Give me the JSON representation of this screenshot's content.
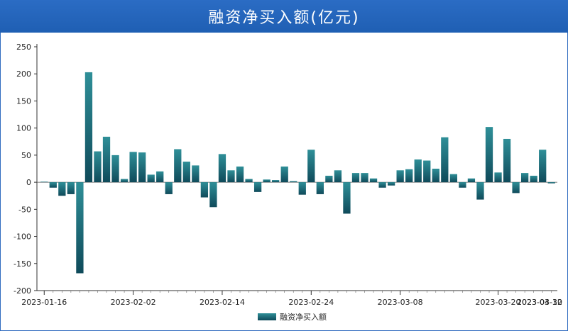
{
  "chart_data": {
    "type": "bar",
    "title": "融资净买入额(亿元)",
    "ylim": [
      -200,
      250
    ],
    "yticks": [
      250,
      200,
      150,
      100,
      50,
      0,
      -50,
      -100,
      -150,
      -200
    ],
    "xtick_labels": [
      "2023-01-16",
      "2023-02-02",
      "2023-02-14",
      "2023-02-24",
      "2023-03-08",
      "2023-03-20",
      "2023-03-30",
      "2023-04-12"
    ],
    "xtick_positions": [
      0,
      10,
      20,
      30,
      40,
      51,
      60,
      70
    ],
    "legend": "融资净买入额",
    "legend_position": "bottom",
    "grid": false,
    "colors": {
      "bar_top": "#2f8f98",
      "bar_bottom": "#0f4a5a",
      "title_bg": "#2b6cc4",
      "title_text": "#ffffff",
      "border": "#2f6bbf"
    },
    "series": [
      {
        "name": "融资净买入额",
        "values": [
          1,
          -10,
          -25,
          -22,
          -168,
          203,
          57,
          84,
          50,
          6,
          56,
          55,
          14,
          20,
          -22,
          61,
          38,
          31,
          -28,
          -46,
          52,
          22,
          29,
          6,
          -18,
          5,
          4,
          29,
          2,
          -23,
          60,
          -22,
          12,
          22,
          -58,
          17,
          17,
          7,
          -10,
          -6,
          22,
          24,
          42,
          40,
          25,
          83,
          15,
          -10,
          7,
          -32,
          102,
          18,
          80,
          -20,
          17,
          12,
          60,
          -2
        ]
      }
    ]
  }
}
